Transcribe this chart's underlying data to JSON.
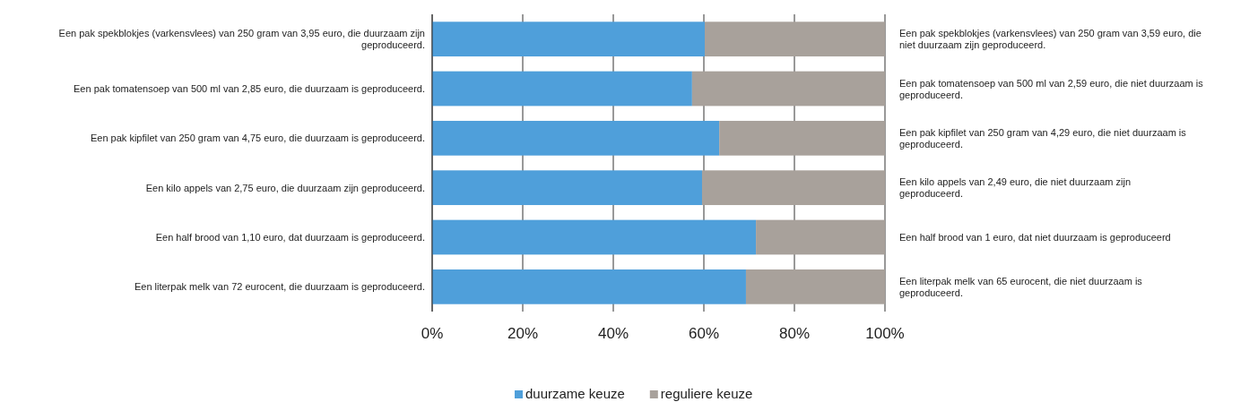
{
  "chart_data": {
    "type": "bar",
    "orientation": "horizontal",
    "stacked": true,
    "categories": [
      "Een pak spekblokjes (varkensvlees) van 250 gram van 3,95 euro, die duurzaam zijn geproduceerd.",
      "Een pak tomatensoep van 500 ml van 2,85 euro, die duurzaam is geproduceerd.",
      "Een pak kipfilet van 250 gram van 4,75 euro, die duurzaam is geproduceerd.",
      "Een kilo appels van 2,75 euro, die duurzaam zijn geproduceerd.",
      "Een half brood van 1,10 euro, dat duurzaam is geproduceerd.",
      "Een literpak melk van 72 eurocent, die duurzaam is geproduceerd."
    ],
    "series": [
      {
        "name": "duurzame keuze",
        "color": "#4f9fda",
        "values": [
          60.2,
          57.4,
          63.4,
          59.6,
          71.5,
          69.3
        ]
      },
      {
        "name": "reguliere keuze",
        "color": "#a8a19b",
        "values": [
          39.8,
          42.6,
          36.6,
          40.4,
          28.5,
          30.7
        ]
      }
    ],
    "annotations": [
      "Een pak spekblokjes (varkensvlees) van 250 gram van 3,59 euro, die niet duurzaam zijn geproduceerd.",
      "Een pak tomatensoep van 500 ml van 2,59 euro, die niet duurzaam is geproduceerd.",
      "Een pak kipfilet van 250 gram van 4,29 euro, die niet duurzaam is geproduceerd.",
      "Een kilo appels van 2,49 euro, die niet duurzaam zijn geproduceerd.",
      "Een half brood van 1 euro, dat niet duurzaam is geproduceerd",
      "Een literpak melk van 65 eurocent, die niet duurzaam is geproduceerd."
    ],
    "xlim": [
      0,
      100
    ],
    "xticks": [
      {
        "value": 0,
        "label": "0%"
      },
      {
        "value": 20,
        "label": "20%"
      },
      {
        "value": 40,
        "label": "40%"
      },
      {
        "value": 60,
        "label": "60%"
      },
      {
        "value": 80,
        "label": "80%"
      },
      {
        "value": 100,
        "label": "100%"
      }
    ],
    "grid": "x",
    "legend": "bottom"
  }
}
